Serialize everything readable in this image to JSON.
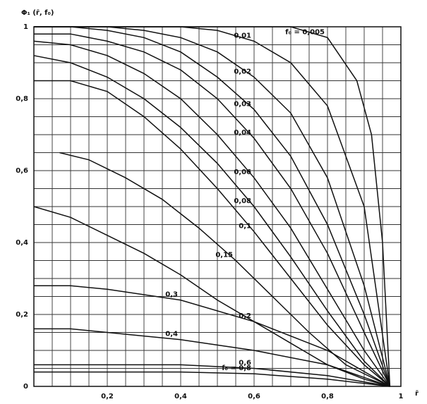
{
  "chart_data": {
    "type": "line",
    "y_label": "Φ₁ (r̄, f₀)",
    "x_label": "r̄",
    "xlim": [
      0,
      1
    ],
    "ylim": [
      0,
      1
    ],
    "xticks": [
      {
        "value": 0.2,
        "label": "0,2"
      },
      {
        "value": 0.4,
        "label": "0,4"
      },
      {
        "value": 0.6,
        "label": "0,6"
      },
      {
        "value": 0.8,
        "label": "0,8"
      },
      1
    ],
    "yticks": [
      0,
      {
        "value": 0.2,
        "label": "0,2"
      },
      {
        "value": 0.4,
        "label": "0,4"
      },
      {
        "value": 0.6,
        "label": "0,6"
      },
      {
        "value": 0.8,
        "label": "0,8"
      },
      1
    ],
    "minor_xticks": [
      0.05,
      0.1,
      0.15,
      0.25,
      0.3,
      0.35,
      0.45,
      0.5,
      0.55,
      0.65,
      0.7,
      0.75,
      0.85,
      0.9,
      0.95
    ],
    "minor_yticks": [
      0.05,
      0.1,
      0.15,
      0.25,
      0.3,
      0.35,
      0.45,
      0.5,
      0.55,
      0.65,
      0.7,
      0.75,
      0.85,
      0.9,
      0.95
    ],
    "grid": true,
    "color": "#111111",
    "series": [
      {
        "name": "f₀ = 0,005",
        "x": [
          0,
          0.2,
          0.4,
          0.6,
          0.7,
          0.8,
          0.88,
          0.92,
          0.95,
          0.97
        ],
        "values": [
          1,
          1,
          1,
          1,
          1,
          0.97,
          0.85,
          0.7,
          0.4,
          0
        ]
      },
      {
        "name": "0,01",
        "x": [
          0,
          0.1,
          0.2,
          0.3,
          0.4,
          0.5,
          0.6,
          0.7,
          0.8,
          0.9,
          0.97
        ],
        "values": [
          1,
          1,
          1,
          1,
          1,
          0.99,
          0.96,
          0.9,
          0.78,
          0.5,
          0
        ]
      },
      {
        "name": "0,02",
        "x": [
          0,
          0.1,
          0.2,
          0.3,
          0.4,
          0.5,
          0.6,
          0.7,
          0.8,
          0.9,
          0.97
        ],
        "values": [
          1,
          1,
          1,
          0.99,
          0.97,
          0.93,
          0.86,
          0.76,
          0.58,
          0.28,
          0
        ]
      },
      {
        "name": "0,03",
        "x": [
          0,
          0.1,
          0.2,
          0.3,
          0.4,
          0.5,
          0.6,
          0.7,
          0.8,
          0.9,
          0.97
        ],
        "values": [
          1,
          1,
          0.99,
          0.97,
          0.93,
          0.86,
          0.77,
          0.64,
          0.45,
          0.2,
          0
        ]
      },
      {
        "name": "0,04",
        "x": [
          0,
          0.1,
          0.2,
          0.3,
          0.4,
          0.5,
          0.6,
          0.7,
          0.8,
          0.9,
          0.97
        ],
        "values": [
          0.98,
          0.98,
          0.96,
          0.93,
          0.88,
          0.8,
          0.69,
          0.55,
          0.37,
          0.15,
          0
        ]
      },
      {
        "name": "0,06",
        "x": [
          0,
          0.1,
          0.2,
          0.3,
          0.4,
          0.5,
          0.6,
          0.7,
          0.8,
          0.9,
          0.97
        ],
        "values": [
          0.96,
          0.95,
          0.92,
          0.87,
          0.8,
          0.7,
          0.58,
          0.44,
          0.27,
          0.1,
          0
        ]
      },
      {
        "name": "0,08",
        "x": [
          0,
          0.1,
          0.2,
          0.3,
          0.4,
          0.5,
          0.6,
          0.7,
          0.8,
          0.9,
          0.97
        ],
        "values": [
          0.92,
          0.9,
          0.86,
          0.8,
          0.72,
          0.62,
          0.5,
          0.36,
          0.21,
          0.07,
          0
        ]
      },
      {
        "name": "0,1",
        "x": [
          0,
          0.1,
          0.2,
          0.3,
          0.4,
          0.5,
          0.6,
          0.7,
          0.8,
          0.9,
          0.97
        ],
        "values": [
          0.85,
          0.85,
          0.82,
          0.75,
          0.66,
          0.55,
          0.43,
          0.3,
          0.17,
          0.06,
          0
        ]
      },
      {
        "name": "0,15",
        "x": [
          0.07,
          0.15,
          0.25,
          0.35,
          0.45,
          0.55,
          0.65,
          0.75,
          0.85,
          0.97
        ],
        "values": [
          0.65,
          0.63,
          0.58,
          0.52,
          0.44,
          0.35,
          0.25,
          0.15,
          0.06,
          0
        ]
      },
      {
        "name": "0,2",
        "x": [
          0,
          0.1,
          0.2,
          0.3,
          0.4,
          0.5,
          0.6,
          0.7,
          0.8,
          0.9,
          0.97
        ],
        "values": [
          0.5,
          0.47,
          0.42,
          0.37,
          0.31,
          0.24,
          0.18,
          0.12,
          0.06,
          0.02,
          0
        ]
      },
      {
        "name": "0,3",
        "x": [
          0,
          0.1,
          0.2,
          0.4,
          0.6,
          0.8,
          0.97
        ],
        "values": [
          0.28,
          0.28,
          0.27,
          0.24,
          0.18,
          0.1,
          0
        ]
      },
      {
        "name": "0,4",
        "x": [
          0,
          0.1,
          0.2,
          0.4,
          0.6,
          0.8,
          0.97
        ],
        "values": [
          0.16,
          0.16,
          0.15,
          0.13,
          0.1,
          0.06,
          0
        ]
      },
      {
        "name": "0,6",
        "x": [
          0,
          0.2,
          0.4,
          0.6,
          0.8,
          0.97
        ],
        "values": [
          0.06,
          0.06,
          0.06,
          0.05,
          0.03,
          0
        ]
      },
      {
        "name": "f₀ = 0,8",
        "x": [
          0,
          0.2,
          0.4,
          0.6,
          0.8,
          0.97
        ],
        "values": [
          0.04,
          0.04,
          0.04,
          0.035,
          0.02,
          0
        ]
      }
    ]
  }
}
